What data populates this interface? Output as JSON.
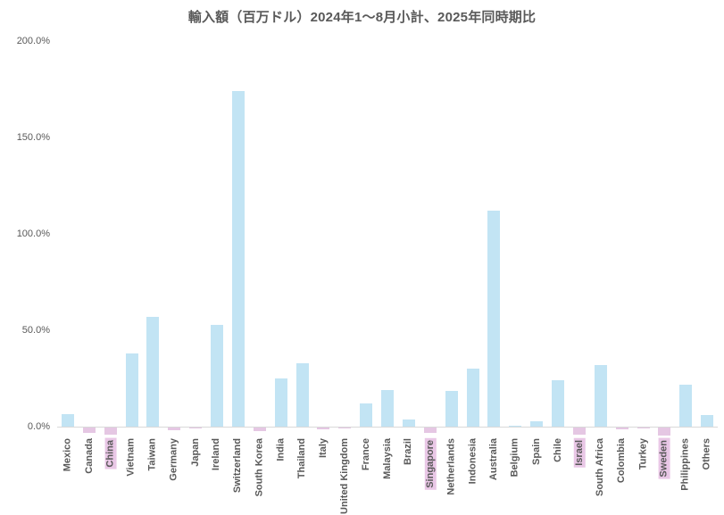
{
  "chart_data": {
    "type": "bar",
    "title": "輸入額（百万ドル）2024年1〜8月小計、2025年同時期比",
    "xlabel": "",
    "ylabel": "",
    "ylim": [
      0,
      200
    ],
    "grid": "off",
    "legend": "none",
    "y_ticks": [
      "200.0%",
      "150.0%",
      "100.0%",
      "50.0%",
      "0.0%"
    ],
    "y_tick_values": [
      200,
      150,
      100,
      50,
      0
    ],
    "categories": [
      "Mexico",
      "Canada",
      "China",
      "Vietnam",
      "Taiwan",
      "Germany",
      "Japan",
      "Ireland",
      "Switzerland",
      "South Korea",
      "India",
      "Thailand",
      "Italy",
      "United Kingdom",
      "France",
      "Malaysia",
      "Brazil",
      "Singapore",
      "Netherlands",
      "Indonesia",
      "Australia",
      "Belgium",
      "Spain",
      "Chile",
      "Israel",
      "South Africa",
      "Colombia",
      "Turkey",
      "Sweden",
      "Philippines",
      "Others"
    ],
    "values": [
      6.5,
      -3.0,
      -4.0,
      38.0,
      57.0,
      -2.0,
      -0.8,
      53.0,
      174.0,
      -2.5,
      25.0,
      33.0,
      -1.5,
      -0.8,
      12.0,
      19.0,
      3.7,
      -3.0,
      18.5,
      30.0,
      112.0,
      0.5,
      2.8,
      24.0,
      -4.0,
      32.0,
      -1.5,
      -0.8,
      -4.5,
      22.0,
      6.0
    ],
    "highlighted_categories": [
      "China",
      "Singapore",
      "Israel",
      "Sweden"
    ],
    "colors": {
      "positive": "#c2e4f4",
      "negative": "#e5c7e3",
      "label_highlight": "#e9c7e6",
      "axis_text": "#595959",
      "title_text": "#595959",
      "axis_line": "#d9d9d9"
    }
  }
}
